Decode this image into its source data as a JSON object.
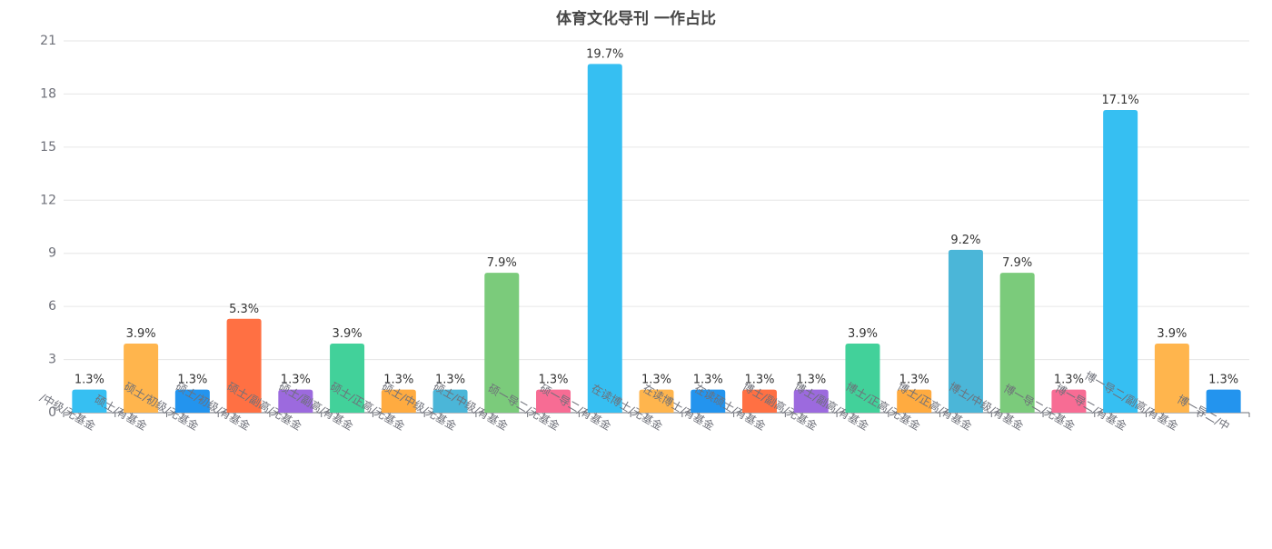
{
  "chart_data": {
    "type": "bar",
    "title": "体育文化导刊 一作占比",
    "categories": [
      "/中级/无基金",
      "硕士/有基金",
      "硕士/初级/无基金",
      "硕士/初级/有基金",
      "硕士/副高/无基金",
      "硕士/副高/有基金",
      "硕士/正高/无基金",
      "硕士/中级/无基金",
      "硕士/中级/有基金",
      "硕一导二/无基金",
      "硕一导二/有基金",
      "在读博士/无基金",
      "在读博士/有基金",
      "在读硕士/有基金",
      "博士/副高/无基金",
      "博士/副高/有基金",
      "博士/正高/无基金",
      "博士/正高/有基金",
      "博士/中级/有基金",
      "博一导二/无基金",
      "博一导二/有基金",
      "博一导二/副高/有基金",
      "博一导二/中"
    ],
    "values": [
      1.3,
      3.9,
      1.3,
      5.3,
      1.3,
      3.9,
      1.3,
      1.3,
      7.9,
      1.3,
      19.7,
      1.3,
      1.3,
      1.3,
      1.3,
      3.9,
      1.3,
      9.2,
      7.9,
      1.3,
      17.1,
      3.9,
      1.3
    ],
    "value_labels": [
      "1.3%",
      "3.9%",
      "1.3%",
      "5.3%",
      "1.3%",
      "3.9%",
      "1.3%",
      "1.3%",
      "7.9%",
      "1.3%",
      "19.7%",
      "1.3%",
      "1.3%",
      "1.3%",
      "1.3%",
      "3.9%",
      "1.3%",
      "9.2%",
      "7.9%",
      "1.3%",
      "17.1%",
      "3.9%",
      "1.3%"
    ],
    "colors": [
      "#36bff2",
      "#ffb54d",
      "#2394ee",
      "#ff7043",
      "#9c6ade",
      "#42d19a",
      "#ffab40",
      "#4bb6d8",
      "#7bcb7b",
      "#f76c94"
    ],
    "ylim": [
      0,
      21
    ],
    "yticks": [
      0,
      3,
      6,
      9,
      12,
      15,
      18,
      21
    ],
    "grid": true
  }
}
